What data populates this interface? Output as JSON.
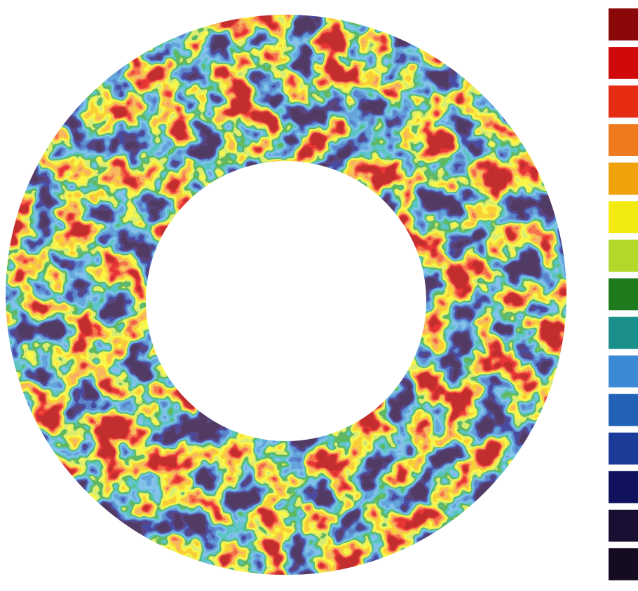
{
  "colorbar": {
    "colors": [
      "#8a0808",
      "#d00a0a",
      "#e62c12",
      "#ef7a1e",
      "#f0a20a",
      "#f2ea10",
      "#b4d82a",
      "#1d7a1d",
      "#1a8f8c",
      "#3c8ad6",
      "#2162b6",
      "#1b3b98",
      "#11125e",
      "#1a0f33",
      "#160c22"
    ]
  }
}
